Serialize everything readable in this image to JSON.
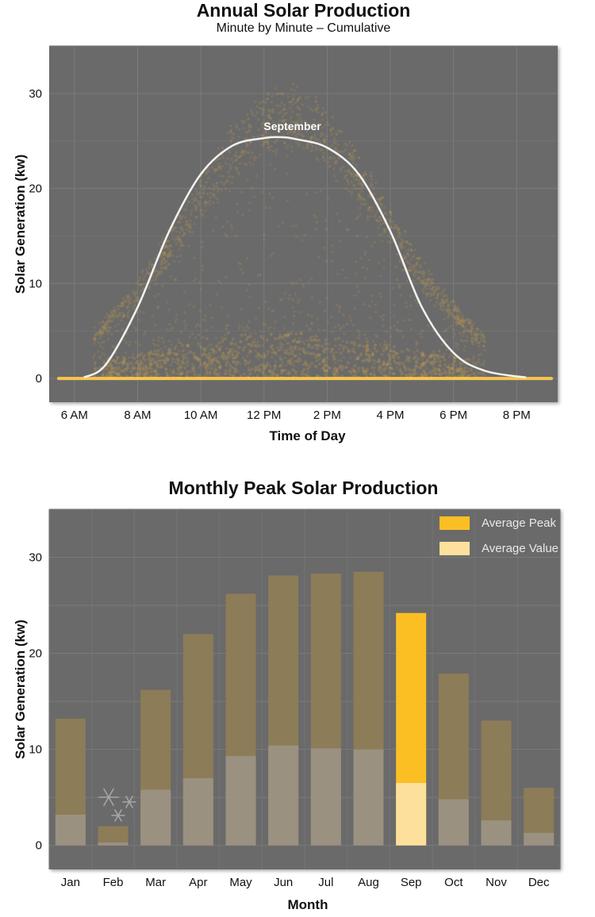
{
  "chart_data": [
    {
      "type": "scatter",
      "title": "Annual Solar Production",
      "subtitle": "Minute by Minute – Cumulative",
      "xlabel": "Time of Day",
      "ylabel": "Solar Generation (kw)",
      "x_ticks": [
        "6 AM",
        "8 AM",
        "10 AM",
        "12 PM",
        "2 PM",
        "4 PM",
        "6 PM",
        "8 PM"
      ],
      "y_ticks": [
        0,
        10,
        20,
        30
      ],
      "ylim": [
        -2.5,
        35
      ],
      "xlim_hours": [
        5.2,
        21.3
      ],
      "grid": true,
      "background": "#6b6b6b",
      "point_color": "#f6b83a",
      "highlight_series": {
        "name": "September",
        "color": "#f2f2f2",
        "x_hours": [
          6.3,
          7,
          8,
          9,
          10,
          11,
          12,
          12.5,
          13,
          14,
          15,
          16,
          17,
          18,
          19,
          20.3
        ],
        "y_kw": [
          0.1,
          1.5,
          7.5,
          15.5,
          21.5,
          24.5,
          25.3,
          25.4,
          25.2,
          24.3,
          21.5,
          15.5,
          7.5,
          2.7,
          0.8,
          0.1
        ]
      }
    },
    {
      "type": "bar",
      "title": "Monthly Peak Solar Production",
      "xlabel": "Month",
      "ylabel": "Solar Generation (kw)",
      "categories": [
        "Jan",
        "Feb",
        "Mar",
        "Apr",
        "May",
        "Jun",
        "Jul",
        "Aug",
        "Sep",
        "Oct",
        "Nov",
        "Dec"
      ],
      "ylim": [
        -2.5,
        35
      ],
      "y_ticks": [
        0,
        10,
        20,
        30
      ],
      "grid": true,
      "legend_position": "top-right",
      "background": "#6b6b6b",
      "highlight_category": "Sep",
      "annotation_icon": "snowflake-icon",
      "series": [
        {
          "name": "Average Peak",
          "color": "#fbbf24",
          "muted_color": "#8c7c58",
          "values": [
            13.2,
            2.0,
            16.2,
            22.0,
            26.2,
            28.1,
            28.3,
            28.5,
            24.2,
            17.9,
            13.0,
            6.0
          ]
        },
        {
          "name": "Average Value",
          "color": "#fde09c",
          "muted_color": "#9b9181",
          "values": [
            3.2,
            0.3,
            5.8,
            7.0,
            9.3,
            10.4,
            10.1,
            10.0,
            6.5,
            4.8,
            2.6,
            1.3
          ]
        }
      ]
    }
  ]
}
